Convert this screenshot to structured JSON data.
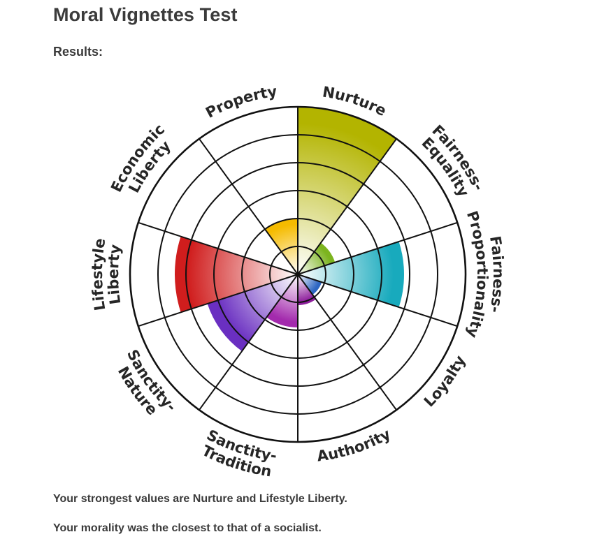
{
  "page": {
    "title": "Moral Vignettes Test",
    "results_label": "Results:",
    "strongest_text": "Your strongest values are Nurture and Lifestyle Liberty.",
    "closest_text": "Your morality was the closest to that of a socialist."
  },
  "chart_data": {
    "type": "polar-area",
    "title": "",
    "rmax": 6,
    "rings": 6,
    "grid": true,
    "categories": [
      "Nurture",
      "Fairness-Equality",
      "Fairness-Proportionality",
      "Loyalty",
      "Authority",
      "Sanctity-Tradition",
      "Sanctity-Nature",
      "Lifestyle Liberty",
      "Economic Liberty",
      "Property"
    ],
    "values": [
      6.0,
      1.4,
      3.8,
      0.9,
      1.1,
      1.9,
      3.4,
      4.4,
      0,
      2.0
    ],
    "colors": [
      "#b3b400",
      "#7cb41f",
      "#18aabd",
      "#2d66c2",
      "#8e1f9c",
      "#a32aad",
      "#6a2fc1",
      "#d01d1d",
      "#d01d1d",
      "#f5bb00"
    ],
    "labels": [
      {
        "lines": [
          "Nurture"
        ]
      },
      {
        "lines": [
          "Fairness-",
          "Equality"
        ]
      },
      {
        "lines": [
          "Fairness-",
          "Proportionality"
        ]
      },
      {
        "lines": [
          "Loyalty"
        ]
      },
      {
        "lines": [
          "Authority"
        ]
      },
      {
        "lines": [
          "Sanctity-",
          "Tradition"
        ]
      },
      {
        "lines": [
          "Sanctity-",
          "Nature"
        ]
      },
      {
        "lines": [
          "Lifestyle",
          "Liberty"
        ]
      },
      {
        "lines": [
          "Economic",
          "Liberty"
        ]
      },
      {
        "lines": [
          "Property"
        ]
      }
    ]
  }
}
